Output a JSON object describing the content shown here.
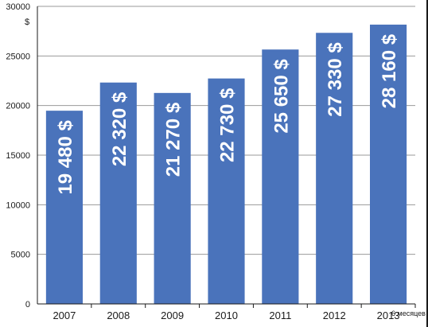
{
  "chart_data": {
    "type": "bar",
    "y_unit": "$",
    "categories": [
      "2007",
      "2008",
      "2009",
      "2010",
      "2011",
      "2012",
      "2013"
    ],
    "x_suffix": "6 месяцев",
    "values": [
      19480,
      22320,
      21270,
      22730,
      25650,
      27330,
      28160
    ],
    "data_labels": [
      "19 480 $",
      "22 320 $",
      "21 270 $",
      "22 730 $",
      "25 650 $",
      "27 330 $",
      "28 160 $"
    ],
    "ylim": [
      0,
      30000
    ],
    "yticks": [
      0,
      5000,
      10000,
      15000,
      20000,
      25000,
      30000
    ],
    "grid": true,
    "legend": "none",
    "colors": {
      "bar": "#4a73bb",
      "grid": "#999999",
      "text": "#1a1a1a",
      "label": "#ffffff"
    }
  }
}
